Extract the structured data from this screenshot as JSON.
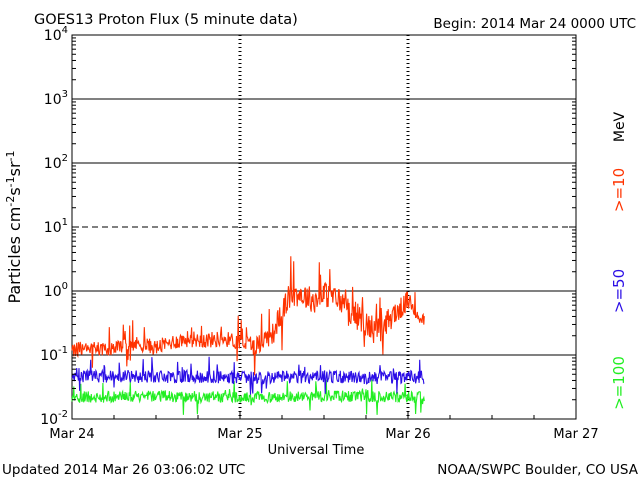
{
  "chart_data": {
    "type": "line",
    "title": "GOES13 Proton Flux (5 minute data)",
    "begin_label": "Begin: 2014 Mar 24 0000 UTC",
    "xlabel": "Universal Time",
    "ylabel": "Particles cm-2s-1sr-1",
    "ylabel_parts": {
      "base": "Particles cm",
      "e1": "-2",
      "s": "s",
      "e2": "-1",
      "sr": "sr",
      "e3": "-1"
    },
    "yscale": "log",
    "ylim": [
      0.01,
      10000
    ],
    "xlim": [
      0,
      3
    ],
    "x_unit": "days since 2014 Mar 24 00:00 UTC",
    "x_ticks": [
      {
        "value": 0,
        "label": "Mar 24"
      },
      {
        "value": 1,
        "label": "Mar 25"
      },
      {
        "value": 2,
        "label": "Mar 26"
      },
      {
        "value": 3,
        "label": "Mar 27"
      }
    ],
    "y_ticks": [
      {
        "exp": -2,
        "base": "10",
        "sup": "-2"
      },
      {
        "exp": -1,
        "base": "10",
        "sup": "-1"
      },
      {
        "exp": 0,
        "base": "10",
        "sup": "0"
      },
      {
        "exp": 1,
        "base": "10",
        "sup": "1"
      },
      {
        "exp": 2,
        "base": "10",
        "sup": "2"
      },
      {
        "exp": 3,
        "base": "10",
        "sup": "3"
      },
      {
        "exp": 4,
        "base": "10",
        "sup": "4"
      }
    ],
    "thresholds": [
      {
        "exp": 1,
        "style": "dashed"
      },
      {
        "exp": 0,
        "style": "solid"
      },
      {
        "exp": 2,
        "style": "solid"
      },
      {
        "exp": 3,
        "style": "solid"
      },
      {
        "exp": -1,
        "style": "solid"
      }
    ],
    "day_dividers": [
      1,
      2
    ],
    "legend_unit": "MeV",
    "series": [
      {
        "name": ">=10",
        "color": "#ff3300",
        "x": [
          0.0,
          0.1,
          0.2,
          0.3,
          0.4,
          0.5,
          0.6,
          0.7,
          0.8,
          0.9,
          1.0,
          1.05,
          1.1,
          1.15,
          1.2,
          1.25,
          1.3,
          1.35,
          1.4,
          1.45,
          1.5,
          1.55,
          1.6,
          1.65,
          1.7,
          1.75,
          1.8,
          1.85,
          1.9,
          1.95,
          2.0,
          2.05,
          2.1
        ],
        "y": [
          0.12,
          0.13,
          0.12,
          0.14,
          0.15,
          0.13,
          0.16,
          0.18,
          0.17,
          0.18,
          0.16,
          0.15,
          0.14,
          0.18,
          0.22,
          0.45,
          0.85,
          0.9,
          0.8,
          0.7,
          0.9,
          0.8,
          0.7,
          0.5,
          0.4,
          0.3,
          0.25,
          0.22,
          0.4,
          0.5,
          0.7,
          0.45,
          0.35
        ],
        "spread": [
          0.11,
          0.11,
          0.11,
          0.12,
          0.12,
          0.12,
          0.12,
          0.13,
          0.13,
          0.12,
          0.13,
          0.15,
          0.16,
          0.16,
          0.17,
          0.2,
          0.2,
          0.2,
          0.2,
          0.2,
          0.2,
          0.2,
          0.2,
          0.2,
          0.22,
          0.22,
          0.22,
          0.22,
          0.2,
          0.18,
          0.15,
          0.12,
          0.1
        ]
      },
      {
        "name": ">=50",
        "color": "#2b0ee6",
        "x": [
          0.0,
          0.25,
          0.5,
          0.75,
          1.0,
          1.25,
          1.5,
          1.75,
          2.0,
          2.1
        ],
        "y": [
          0.045,
          0.047,
          0.045,
          0.046,
          0.044,
          0.045,
          0.046,
          0.044,
          0.045,
          0.045
        ],
        "spread": [
          0.1,
          0.1,
          0.1,
          0.1,
          0.1,
          0.1,
          0.1,
          0.1,
          0.1,
          0.1
        ]
      },
      {
        "name": ">=100",
        "color": "#22ee22",
        "x": [
          0.0,
          0.25,
          0.5,
          0.75,
          1.0,
          1.25,
          1.5,
          1.75,
          2.0,
          2.1
        ],
        "y": [
          0.022,
          0.022,
          0.023,
          0.022,
          0.022,
          0.022,
          0.023,
          0.022,
          0.022,
          0.022
        ],
        "spread": [
          0.09,
          0.09,
          0.09,
          0.09,
          0.09,
          0.09,
          0.09,
          0.09,
          0.09,
          0.09
        ]
      }
    ]
  },
  "footer": {
    "updated": "Updated 2014 Mar 26 03:06:02 UTC",
    "source": "NOAA/SWPC Boulder, CO USA"
  }
}
